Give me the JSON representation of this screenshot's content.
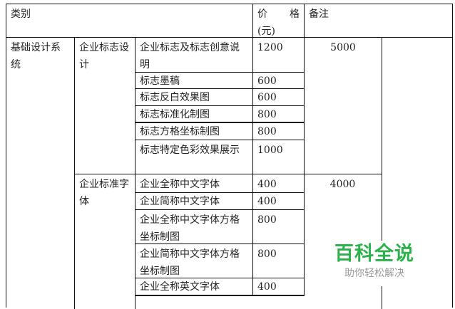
{
  "header": {
    "category": "类别",
    "price_1": "价",
    "price_2": "格",
    "price_unit": "(元)",
    "note": "备注"
  },
  "level1": "基础设计系统",
  "groups": [
    {
      "name": "企业标志设计",
      "total": "5000",
      "items": [
        {
          "name": "企业标志及标志创意说明",
          "price": "1200"
        },
        {
          "name": "标志墨稿",
          "price": "600"
        },
        {
          "name": "标志反白效果图",
          "price": "600"
        },
        {
          "name": "标志标准化制图",
          "price": "800"
        },
        {
          "name": "标志方格坐标制图",
          "price": "800"
        },
        {
          "name": "标志特定色彩效果展示",
          "price": "1000"
        }
      ]
    },
    {
      "name": "企业标准字体",
      "total": "4000",
      "items": [
        {
          "name": "企业全称中文字体",
          "price": "400"
        },
        {
          "name": "企业简称中文字体",
          "price": "400"
        },
        {
          "name": "企业全称中文字体方格坐标制图",
          "price": "800"
        },
        {
          "name": "企业简称中文字体方格坐标制图",
          "price": "800"
        },
        {
          "name": "企业全称英文字体",
          "price": "400"
        }
      ]
    }
  ],
  "watermark": {
    "title": "百科全说",
    "subtitle": "助你轻松解决",
    "color": "#2bb24c"
  }
}
